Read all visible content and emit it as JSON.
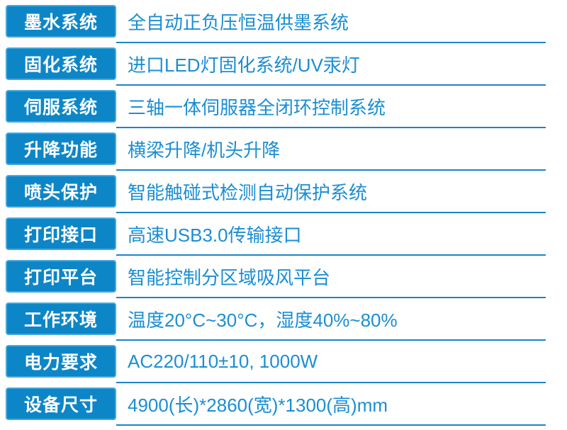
{
  "table_name": "printer-specification-table",
  "colors": {
    "label_box_fill": "#0d86c8",
    "label_box_border": "#46a9dc",
    "label_text": "#ffffff",
    "value_text": "#1b8ed3",
    "underline": "#1a85c6",
    "background": "#ffffff"
  },
  "rows": [
    {
      "label": "墨水系统",
      "value": "全自动正负压恒温供墨系统"
    },
    {
      "label": "固化系统",
      "value": "进口LED灯固化系统/UV汞灯"
    },
    {
      "label": "伺服系统",
      "value": "三轴一体伺服器全闭环控制系统"
    },
    {
      "label": "升降功能",
      "value": "横梁升降/机头升降"
    },
    {
      "label": "喷头保护",
      "value": "智能触碰式检测自动保护系统"
    },
    {
      "label": "打印接口",
      "value": "高速USB3.0传输接口"
    },
    {
      "label": "打印平台",
      "value": "智能控制分区域吸风平台"
    },
    {
      "label": "工作环境",
      "value": "温度20°C~30°C，湿度40%~80%"
    },
    {
      "label": "电力要求",
      "value": "AC220/110±10, 1000W"
    },
    {
      "label": "设备尺寸",
      "value": "4900(长)*2860(宽)*1300(高)mm"
    }
  ]
}
